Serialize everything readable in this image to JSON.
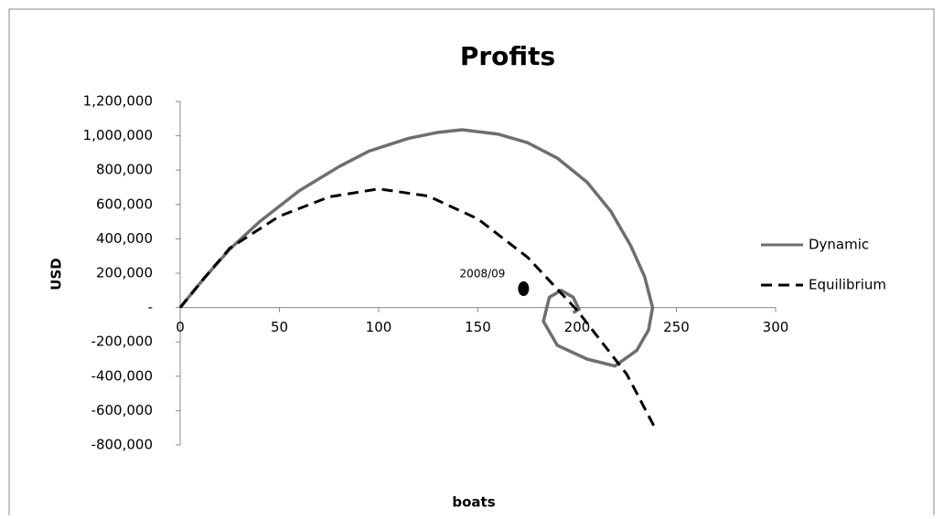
{
  "chart_data": {
    "type": "scatter",
    "title": "Profits",
    "x_label": "boats",
    "y_label": "USD",
    "xlim": [
      0,
      300
    ],
    "xticks": [
      0,
      50,
      100,
      150,
      200,
      250,
      300
    ],
    "ylim": [
      -800000,
      1200000
    ],
    "yticks": [
      {
        "value": -800000,
        "label": "-800,000"
      },
      {
        "value": -600000,
        "label": "-600,000"
      },
      {
        "value": -400000,
        "label": "-400,000"
      },
      {
        "value": -200000,
        "label": "-200,000"
      },
      {
        "value": 0,
        "label": "-"
      },
      {
        "value": 200000,
        "label": "200,000"
      },
      {
        "value": 400000,
        "label": "400,000"
      },
      {
        "value": 600000,
        "label": "600,000"
      },
      {
        "value": 800000,
        "label": "800,000"
      },
      {
        "value": 1000000,
        "label": "1,000,000"
      },
      {
        "value": 1200000,
        "label": "1,200,000"
      }
    ],
    "legend": "right",
    "series": [
      {
        "name": "Dynamic",
        "color": "#6e6e6e",
        "dash": "solid",
        "x": [
          0,
          12,
          25,
          40,
          60,
          80,
          95,
          115,
          130,
          142,
          160,
          175,
          190,
          205,
          217,
          227,
          234,
          238,
          236,
          230,
          219,
          205,
          190,
          183,
          186,
          192,
          198,
          201,
          198
        ],
        "values": [
          0,
          170000,
          340000,
          500000,
          680000,
          820000,
          910000,
          985000,
          1020000,
          1035000,
          1010000,
          960000,
          870000,
          730000,
          560000,
          360000,
          180000,
          0,
          -130000,
          -250000,
          -340000,
          -300000,
          -220000,
          -80000,
          60000,
          100000,
          60000,
          -10000,
          -30000
        ]
      },
      {
        "name": "Equilibrium",
        "color": "#000000",
        "dash": "dashed",
        "x": [
          0,
          12,
          25,
          50,
          75,
          100,
          125,
          150,
          175,
          200,
          225,
          240
        ],
        "values": [
          0,
          170000,
          346000,
          532000,
          644000,
          691000,
          649000,
          516000,
          293000,
          -16000,
          -388000,
          -718000
        ]
      }
    ],
    "annotations": [
      {
        "text": "2008/09",
        "x": 173,
        "y": 110000
      }
    ]
  }
}
